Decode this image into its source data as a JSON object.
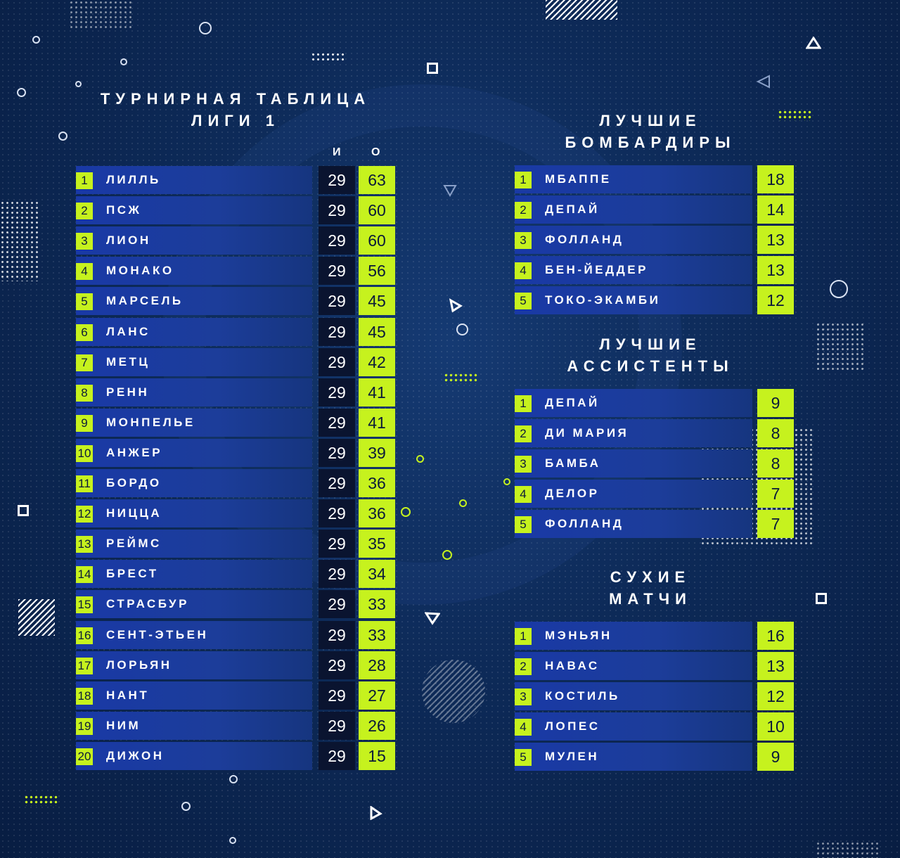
{
  "league": {
    "title_line1": "ТУРНИРНАЯ ТАБЛИЦА",
    "title_line2": "ЛИГИ 1",
    "col_games": "И",
    "col_points": "О",
    "rows": [
      {
        "rank": "1",
        "team": "ЛИЛЛЬ",
        "games": "29",
        "points": "63"
      },
      {
        "rank": "2",
        "team": "ПСЖ",
        "games": "29",
        "points": "60"
      },
      {
        "rank": "3",
        "team": "ЛИОН",
        "games": "29",
        "points": "60"
      },
      {
        "rank": "4",
        "team": "МОНАКО",
        "games": "29",
        "points": "56"
      },
      {
        "rank": "5",
        "team": "МАРСЕЛЬ",
        "games": "29",
        "points": "45"
      },
      {
        "rank": "6",
        "team": "ЛАНС",
        "games": "29",
        "points": "45"
      },
      {
        "rank": "7",
        "team": "МЕТЦ",
        "games": "29",
        "points": "42"
      },
      {
        "rank": "8",
        "team": "РЕНН",
        "games": "29",
        "points": "41"
      },
      {
        "rank": "9",
        "team": "МОНПЕЛЬЕ",
        "games": "29",
        "points": "41"
      },
      {
        "rank": "10",
        "team": "АНЖЕР",
        "games": "29",
        "points": "39"
      },
      {
        "rank": "11",
        "team": "БОРДО",
        "games": "29",
        "points": "36"
      },
      {
        "rank": "12",
        "team": "НИЦЦА",
        "games": "29",
        "points": "36"
      },
      {
        "rank": "13",
        "team": "РЕЙМС",
        "games": "29",
        "points": "35"
      },
      {
        "rank": "14",
        "team": "БРЕСТ",
        "games": "29",
        "points": "34"
      },
      {
        "rank": "15",
        "team": "СТРАСБУР",
        "games": "29",
        "points": "33"
      },
      {
        "rank": "16",
        "team": "СЕНТ-ЭТЬЕН",
        "games": "29",
        "points": "33"
      },
      {
        "rank": "17",
        "team": "ЛОРЬЯН",
        "games": "29",
        "points": "28"
      },
      {
        "rank": "18",
        "team": "НАНТ",
        "games": "29",
        "points": "27"
      },
      {
        "rank": "19",
        "team": "НИМ",
        "games": "29",
        "points": "26"
      },
      {
        "rank": "20",
        "team": "ДИЖОН",
        "games": "29",
        "points": "15"
      }
    ]
  },
  "scorers": {
    "title_line1": "ЛУЧШИЕ",
    "title_line2": "БОМБАРДИРЫ",
    "rows": [
      {
        "rank": "1",
        "player": "МБАППЕ",
        "value": "18"
      },
      {
        "rank": "2",
        "player": "ДЕПАЙ",
        "value": "14"
      },
      {
        "rank": "3",
        "player": "ФОЛЛАНД",
        "value": "13"
      },
      {
        "rank": "4",
        "player": "БЕН-ЙЕДДЕР",
        "value": "13"
      },
      {
        "rank": "5",
        "player": "ТОКО-ЭКАМБИ",
        "value": "12"
      }
    ]
  },
  "assists": {
    "title_line1": "ЛУЧШИЕ",
    "title_line2": "АССИСТЕНТЫ",
    "rows": [
      {
        "rank": "1",
        "player": "ДЕПАЙ",
        "value": "9"
      },
      {
        "rank": "2",
        "player": "ДИ МАРИЯ",
        "value": "8"
      },
      {
        "rank": "3",
        "player": "БАМБА",
        "value": "8"
      },
      {
        "rank": "4",
        "player": "ДЕЛОР",
        "value": "7"
      },
      {
        "rank": "5",
        "player": "ФОЛЛАНД",
        "value": "7"
      }
    ]
  },
  "clean_sheets": {
    "title_line1": "СУХИЕ",
    "title_line2": "МАТЧИ",
    "rows": [
      {
        "rank": "1",
        "player": "МЭНЬЯН",
        "value": "16"
      },
      {
        "rank": "2",
        "player": "НАВАС",
        "value": "13"
      },
      {
        "rank": "3",
        "player": "КОСТИЛЬ",
        "value": "12"
      },
      {
        "rank": "4",
        "player": "ЛОПЕС",
        "value": "10"
      },
      {
        "rank": "5",
        "player": "МУЛЕН",
        "value": "9"
      }
    ]
  },
  "colors": {
    "accent": "#c6f21e",
    "bar": "#1c3d9a",
    "games_cell": "#0a1430",
    "background": "#0d2a58"
  }
}
